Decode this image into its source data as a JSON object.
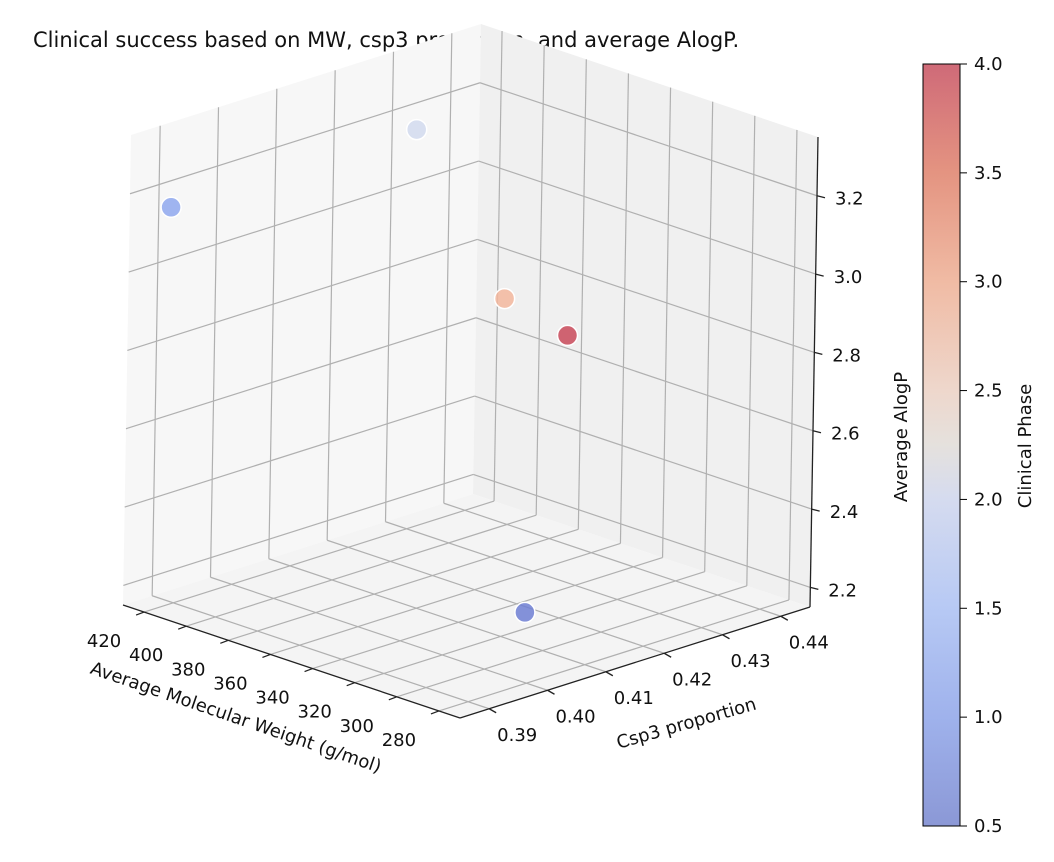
{
  "chart_data": {
    "type": "scatter",
    "projection": "3d",
    "title": "Clinical success based on MW, csp3 proportion, and average AlogP.",
    "xlabel": "Average Molecular Weight (g/mol)",
    "ylabel": "Csp3 proportion",
    "zlabel": "Average AlogP",
    "x_ticks": [
      280,
      300,
      320,
      340,
      360,
      380,
      400,
      420
    ],
    "y_ticks": [
      0.39,
      0.4,
      0.41,
      0.42,
      0.43,
      0.44
    ],
    "z_ticks": [
      2.2,
      2.4,
      2.6,
      2.8,
      3.0,
      3.2
    ],
    "x_tick_labels": [
      "280",
      "300",
      "320",
      "340",
      "360",
      "380",
      "400",
      "420"
    ],
    "y_tick_labels": [
      "0.39",
      "0.40",
      "0.41",
      "0.42",
      "0.43",
      "0.44"
    ],
    "z_tick_labels": [
      "2.2",
      "2.4",
      "2.6",
      "2.8",
      "3.0",
      "3.2"
    ],
    "grid": true,
    "colormap": "coolwarm",
    "marker_alpha": 0.65,
    "colorbar": {
      "label": "Clinical Phase",
      "range": [
        0.5,
        4.0
      ],
      "ticks": [
        0.5,
        1.0,
        1.5,
        2.0,
        2.5,
        3.0,
        3.5,
        4.0
      ],
      "tick_labels": [
        "0.5",
        "1.0",
        "1.5",
        "2.0",
        "2.5",
        "3.0",
        "3.5",
        "4.0"
      ]
    },
    "points": [
      {
        "x": 295,
        "y": 0.405,
        "z": 2.28,
        "phase": 0.5
      },
      {
        "x": 405,
        "y": 0.383,
        "z": 3.22,
        "phase": 1.0
      },
      {
        "x": 402,
        "y": 0.424,
        "z": 3.23,
        "phase": 2.0
      },
      {
        "x": 392,
        "y": 0.436,
        "z": 2.76,
        "phase": 3.0
      },
      {
        "x": 362,
        "y": 0.436,
        "z": 2.72,
        "phase": 4.0
      }
    ]
  }
}
